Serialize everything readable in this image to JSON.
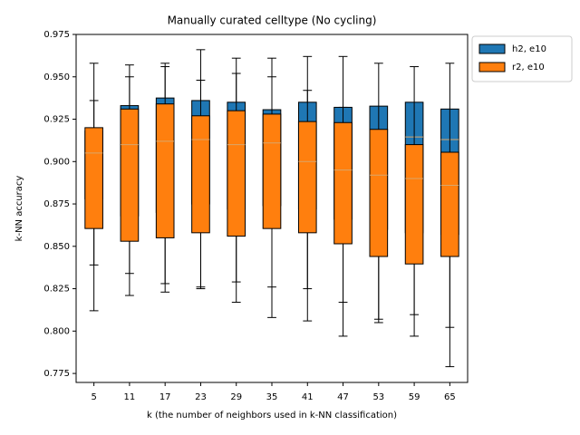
{
  "chart_data": {
    "type": "box",
    "title": "Manually curated celltype (No cycling)",
    "x_label": "k (the number of neighbors used in k-NN classification)",
    "y_label": "k-NN accuracy",
    "categories": [
      "5",
      "11",
      "17",
      "23",
      "29",
      "35",
      "41",
      "47",
      "53",
      "59",
      "65"
    ],
    "ylim": [
      0.7697,
      0.975
    ],
    "yticks": [
      0.775,
      {
        "value": 0.8,
        "label": "0.800"
      },
      0.825,
      {
        "value": 0.85,
        "label": "0.850"
      },
      0.875,
      {
        "value": 0.9,
        "label": "0.900"
      },
      0.925,
      {
        "value": 0.95,
        "label": "0.950"
      },
      0.975
    ],
    "legend_position": "outside upper right",
    "median_color": "#d9a66a",
    "series": [
      {
        "name": "h2, e10",
        "color": "#1f77b4",
        "q1": [
          0.878,
          0.868,
          0.87,
          0.875,
          0.872,
          0.874,
          0.872,
          0.866,
          0.86,
          0.858,
          0.857
        ],
        "median": [
          0.902,
          0.905,
          0.907,
          0.91,
          0.909,
          0.908,
          0.905,
          0.902,
          0.9,
          0.9145,
          0.913
        ],
        "q3": [
          0.918,
          0.933,
          0.9375,
          0.936,
          0.935,
          0.9306,
          0.935,
          0.932,
          0.9327,
          0.935,
          0.931
        ],
        "whislo": [
          0.839,
          0.834,
          0.828,
          0.826,
          0.829,
          0.826,
          0.825,
          0.817,
          0.807,
          0.8097,
          0.8022
        ],
        "whishi": [
          0.936,
          0.95,
          0.956,
          0.948,
          0.952,
          0.95,
          0.942,
          0.932,
          0.93,
          0.9258,
          0.9258
        ]
      },
      {
        "name": "r2, e10",
        "color": "#ff7f0e",
        "q1": [
          0.8605,
          0.853,
          0.855,
          0.858,
          0.856,
          0.8605,
          0.858,
          0.8515,
          0.844,
          0.8396,
          0.844
        ],
        "median": [
          0.905,
          0.91,
          0.912,
          0.913,
          0.91,
          0.911,
          0.9,
          0.895,
          0.892,
          0.89,
          0.886
        ],
        "q3": [
          0.92,
          0.931,
          0.934,
          0.927,
          0.93,
          0.928,
          0.9236,
          0.923,
          0.919,
          0.91,
          0.9055
        ],
        "whislo": [
          0.812,
          0.821,
          0.823,
          0.825,
          0.817,
          0.808,
          0.806,
          0.797,
          0.805,
          0.797,
          0.779
        ],
        "whishi": [
          0.958,
          0.957,
          0.958,
          0.966,
          0.961,
          0.961,
          0.962,
          0.962,
          0.958,
          0.956,
          0.958
        ]
      }
    ]
  }
}
